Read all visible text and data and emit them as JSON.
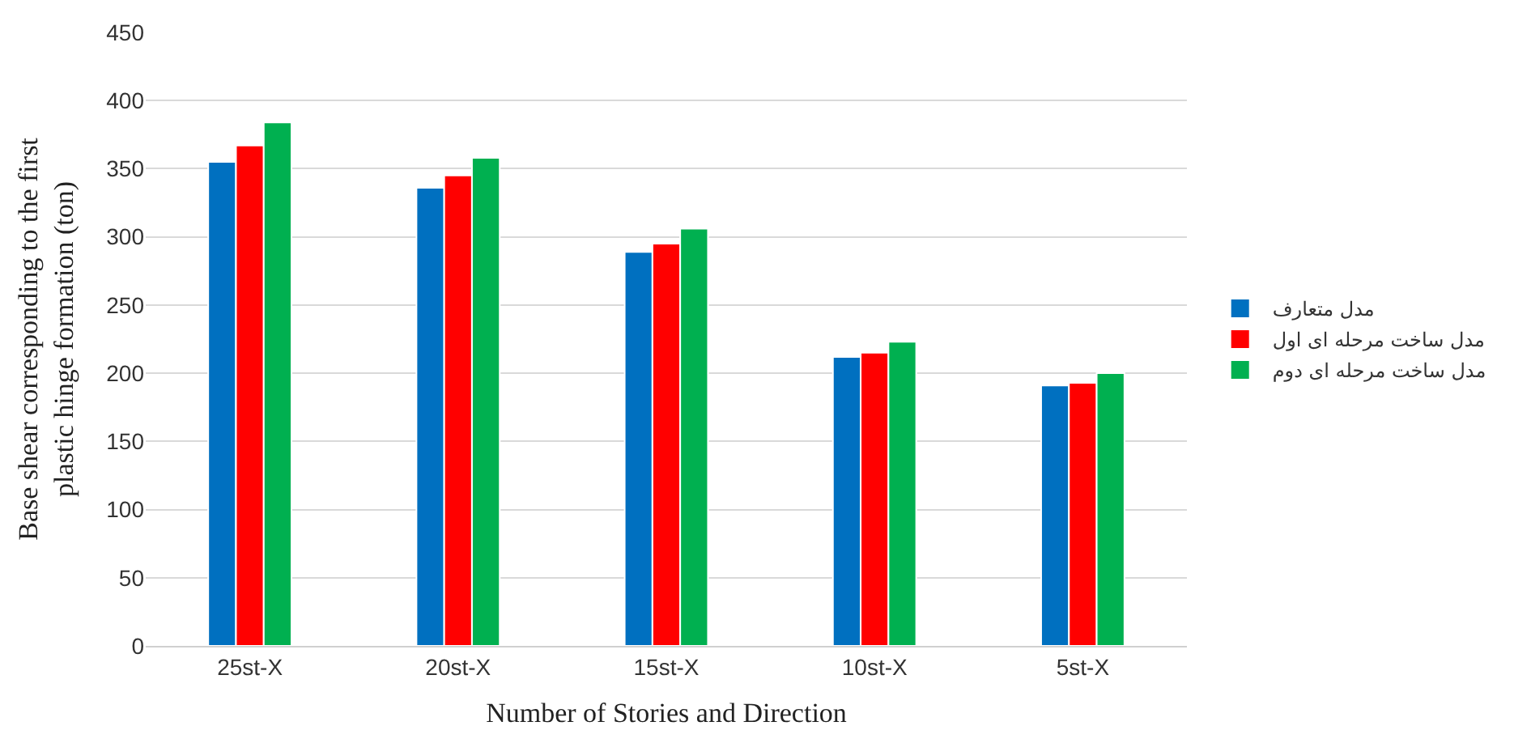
{
  "chart_data": {
    "type": "bar",
    "xlabel": "Number of Stories and Direction",
    "ylabel": "Base shear corresponding to the first plastic hinge formation (ton)",
    "categories": [
      "25st-X",
      "20st-X",
      "15st-X",
      "10st-X",
      "5st-X"
    ],
    "series": [
      {
        "name": "مدل متعارف",
        "color": "#0070c0",
        "values": [
          355,
          336,
          289,
          212,
          191
        ]
      },
      {
        "name": "مدل ساخت مرحله ای اول",
        "color": "#ff0000",
        "values": [
          367,
          345,
          295,
          215,
          193
        ]
      },
      {
        "name": "مدل ساخت مرحله ای دوم",
        "color": "#00b050",
        "values": [
          384,
          358,
          306,
          223,
          200
        ]
      }
    ],
    "ylim": [
      0,
      450
    ],
    "yticks": [
      0,
      50,
      100,
      150,
      200,
      250,
      300,
      350,
      400,
      450
    ],
    "grid": "y",
    "legend": "right"
  }
}
